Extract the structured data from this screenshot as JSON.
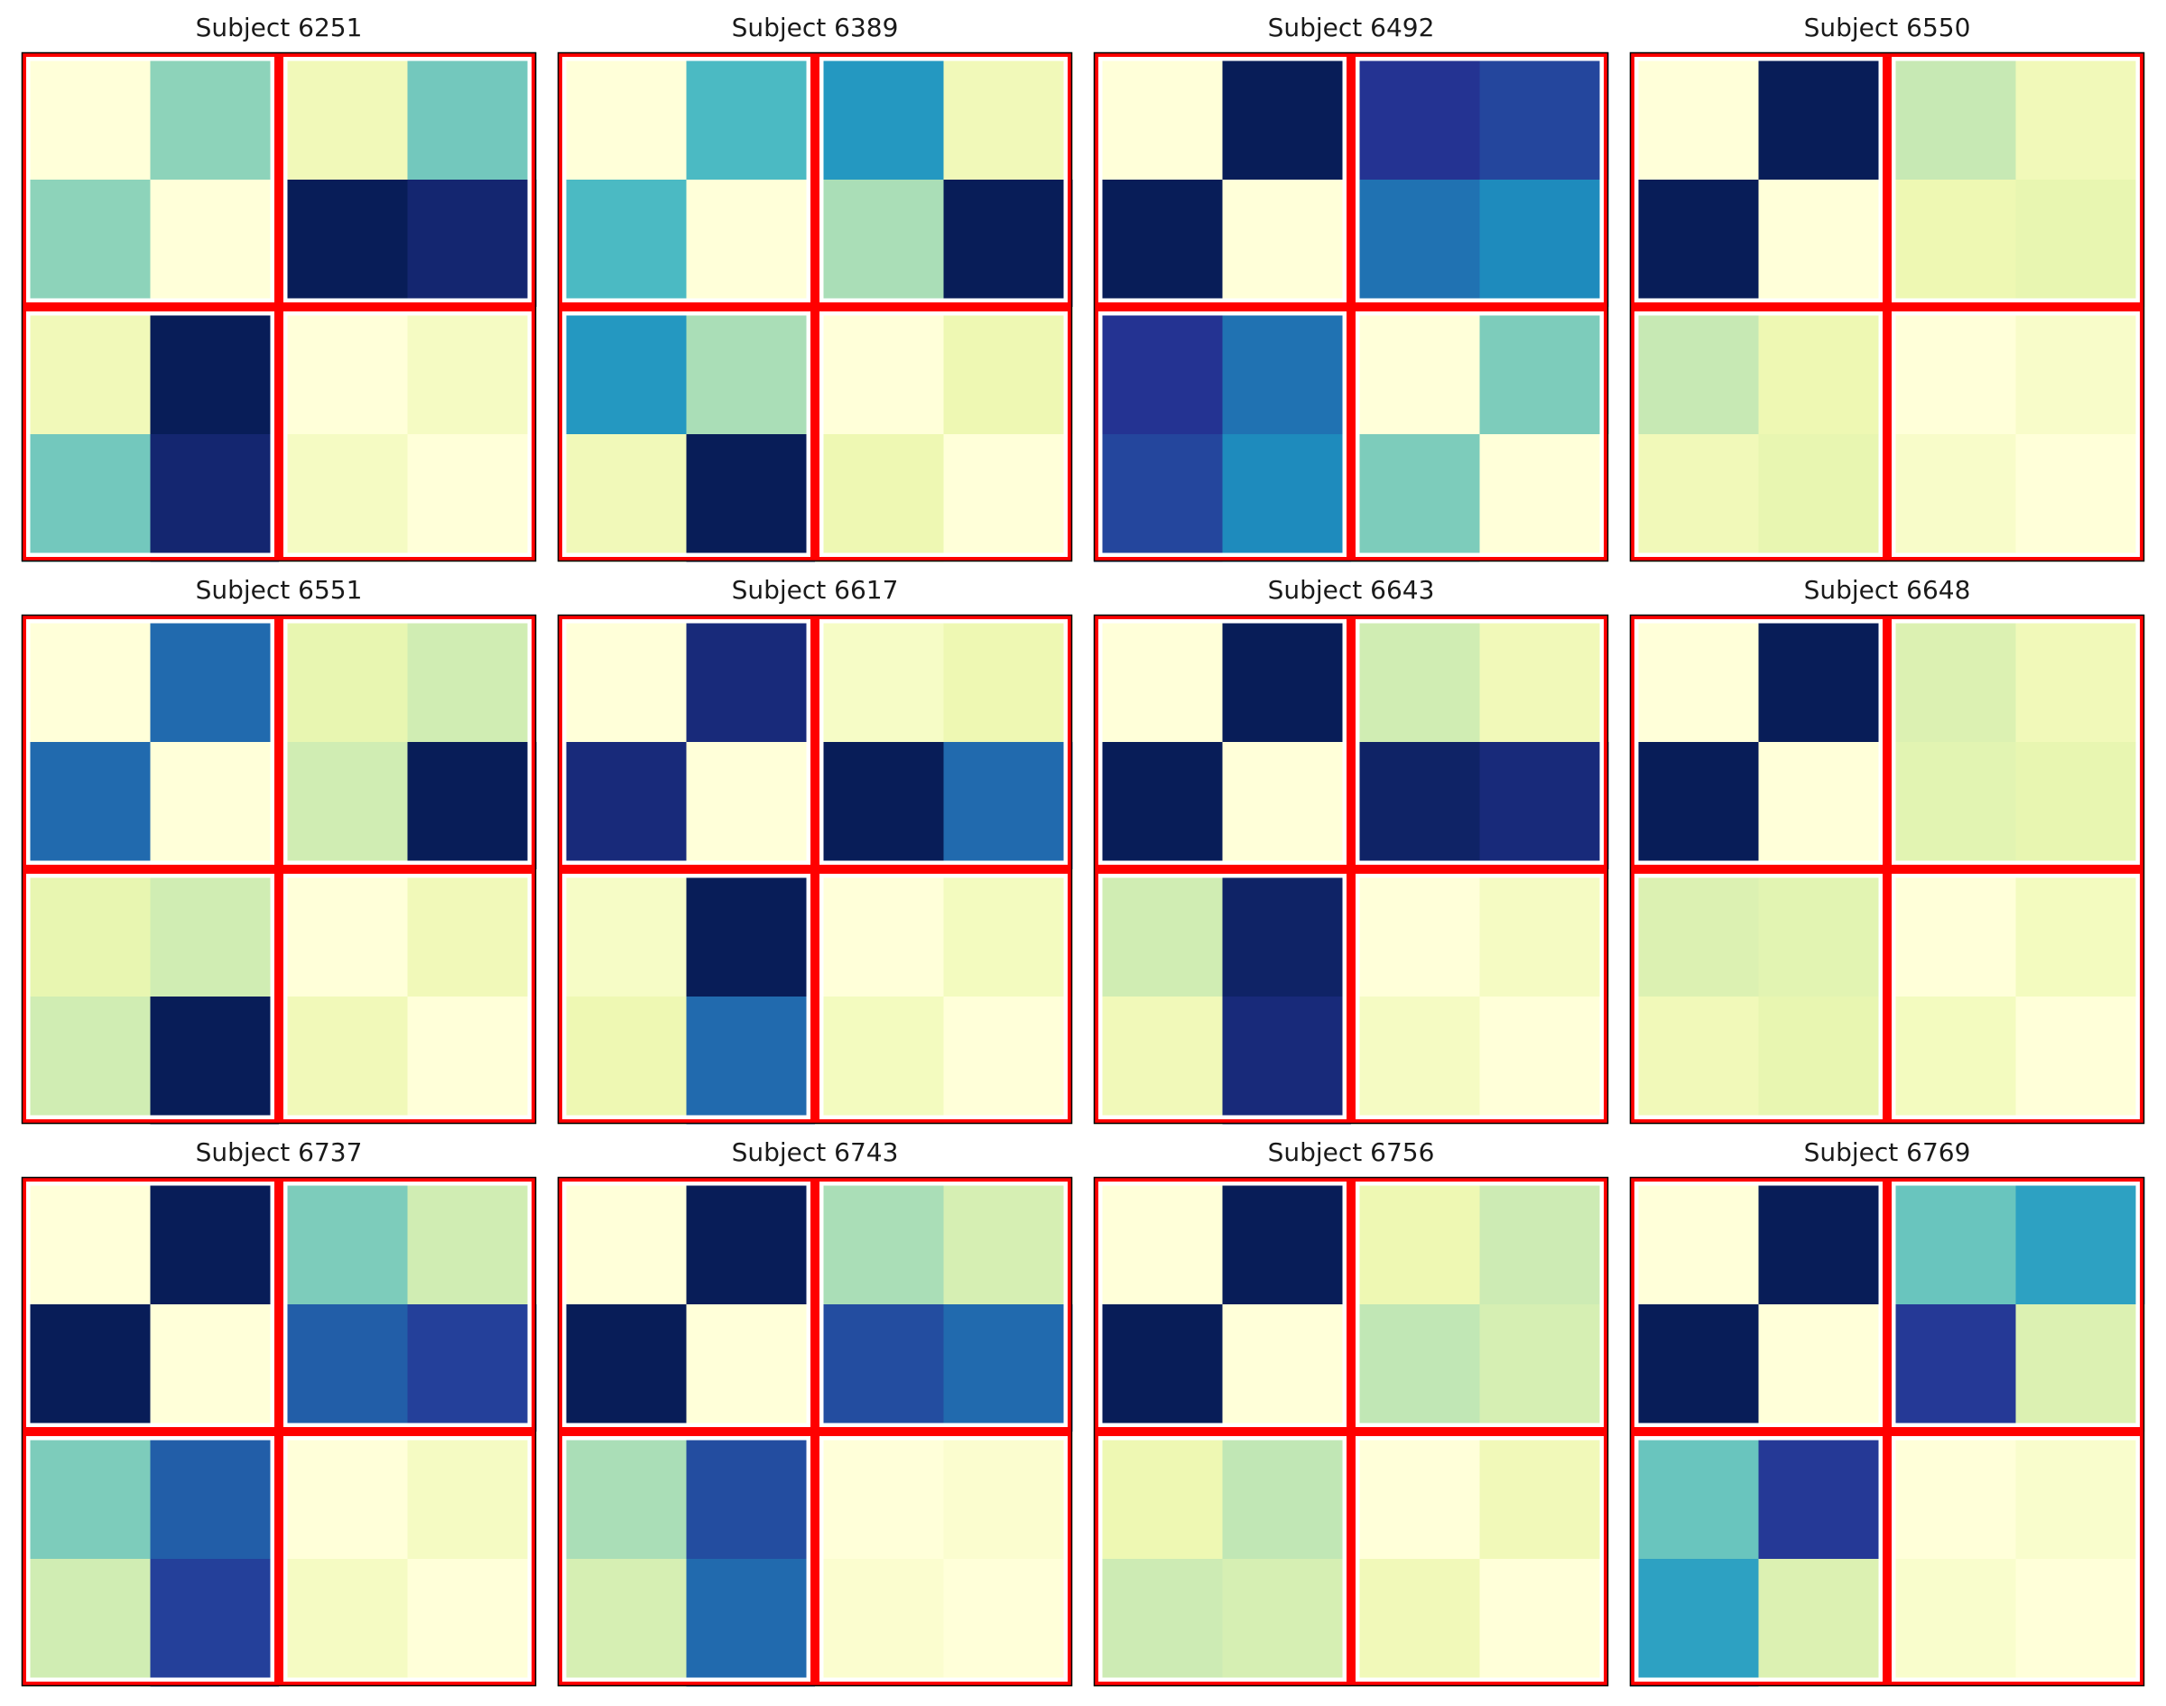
{
  "chart_data": {
    "type": "heatmap",
    "matrix_size": 4,
    "block_size": 2,
    "colormap": "YlGnBu",
    "value_range": [
      0,
      1
    ],
    "block_outline_color": "#ff0000",
    "grid": false,
    "axes_ticks": false,
    "panels": [
      {
        "title": "Subject 6251",
        "matrix": [
          [
            0.0,
            0.35,
            0.1,
            0.4
          ],
          [
            0.35,
            0.0,
            1.0,
            0.95
          ],
          [
            0.1,
            1.0,
            0.0,
            0.07
          ],
          [
            0.4,
            0.95,
            0.07,
            0.0
          ]
        ]
      },
      {
        "title": "Subject 6389",
        "matrix": [
          [
            0.0,
            0.48,
            0.6,
            0.1
          ],
          [
            0.48,
            0.0,
            0.3,
            1.0
          ],
          [
            0.6,
            0.3,
            0.0,
            0.12
          ],
          [
            0.1,
            1.0,
            0.12,
            0.0
          ]
        ]
      },
      {
        "title": "Subject 6492",
        "matrix": [
          [
            0.0,
            1.0,
            0.88,
            0.82
          ],
          [
            1.0,
            0.0,
            0.7,
            0.64
          ],
          [
            0.88,
            0.7,
            0.0,
            0.38
          ],
          [
            0.82,
            0.64,
            0.38,
            0.0
          ]
        ]
      },
      {
        "title": "Subject 6550",
        "matrix": [
          [
            0.0,
            1.0,
            0.25,
            0.1
          ],
          [
            1.0,
            0.0,
            0.12,
            0.14
          ],
          [
            0.25,
            0.12,
            0.0,
            0.05
          ],
          [
            0.1,
            0.14,
            0.05,
            0.0
          ]
        ]
      },
      {
        "title": "Subject 6551",
        "matrix": [
          [
            0.0,
            0.72,
            0.14,
            0.22
          ],
          [
            0.72,
            0.0,
            0.22,
            1.0
          ],
          [
            0.14,
            0.22,
            0.0,
            0.1
          ],
          [
            0.22,
            1.0,
            0.1,
            0.0
          ]
        ]
      },
      {
        "title": "Subject 6617",
        "matrix": [
          [
            0.0,
            0.93,
            0.06,
            0.12
          ],
          [
            0.93,
            0.0,
            1.0,
            0.72
          ],
          [
            0.06,
            1.0,
            0.0,
            0.08
          ],
          [
            0.12,
            0.72,
            0.08,
            0.0
          ]
        ]
      },
      {
        "title": "Subject 6643",
        "matrix": [
          [
            0.0,
            1.0,
            0.22,
            0.1
          ],
          [
            1.0,
            0.0,
            0.97,
            0.93
          ],
          [
            0.22,
            0.97,
            0.0,
            0.07
          ],
          [
            0.1,
            0.93,
            0.07,
            0.0
          ]
        ]
      },
      {
        "title": "Subject 6648",
        "matrix": [
          [
            0.0,
            1.0,
            0.18,
            0.1
          ],
          [
            1.0,
            0.0,
            0.16,
            0.14
          ],
          [
            0.18,
            0.16,
            0.0,
            0.08
          ],
          [
            0.1,
            0.14,
            0.08,
            0.0
          ]
        ]
      },
      {
        "title": "Subject 6737",
        "matrix": [
          [
            0.0,
            1.0,
            0.38,
            0.22
          ],
          [
            1.0,
            0.0,
            0.75,
            0.84
          ],
          [
            0.38,
            0.75,
            0.0,
            0.07
          ],
          [
            0.22,
            0.84,
            0.07,
            0.0
          ]
        ]
      },
      {
        "title": "Subject 6743",
        "matrix": [
          [
            0.0,
            1.0,
            0.3,
            0.2
          ],
          [
            1.0,
            0.0,
            0.8,
            0.72
          ],
          [
            0.3,
            0.8,
            0.0,
            0.03
          ],
          [
            0.2,
            0.72,
            0.03,
            0.0
          ]
        ]
      },
      {
        "title": "Subject 6756",
        "matrix": [
          [
            0.0,
            1.0,
            0.12,
            0.23
          ],
          [
            1.0,
            0.0,
            0.26,
            0.2
          ],
          [
            0.12,
            0.26,
            0.0,
            0.1
          ],
          [
            0.23,
            0.2,
            0.1,
            0.0
          ]
        ]
      },
      {
        "title": "Subject 6769",
        "matrix": [
          [
            0.0,
            1.0,
            0.42,
            0.57
          ],
          [
            1.0,
            0.0,
            0.86,
            0.18
          ],
          [
            0.42,
            0.86,
            0.0,
            0.04
          ],
          [
            0.57,
            0.18,
            0.04,
            0.0
          ]
        ]
      }
    ]
  }
}
